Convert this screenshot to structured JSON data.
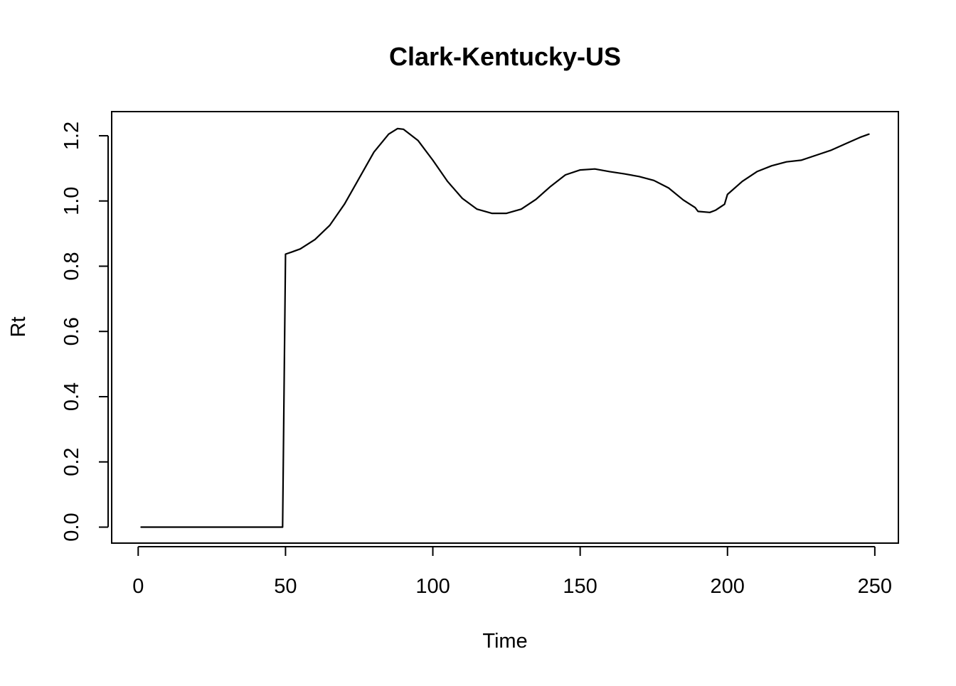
{
  "chart_data": {
    "type": "line",
    "title": "Clark-Kentucky-US",
    "xlabel": "Time",
    "ylabel": "Rt",
    "xlim": [
      -9,
      258
    ],
    "ylim": [
      -0.049,
      1.274
    ],
    "xticks": [
      0,
      50,
      100,
      150,
      200,
      250
    ],
    "yticks": [
      0.0,
      0.2,
      0.4,
      0.6,
      0.8,
      1.0,
      1.2
    ],
    "xtick_labels": [
      "0",
      "50",
      "100",
      "150",
      "200",
      "250"
    ],
    "ytick_labels": [
      "0.0",
      "0.2",
      "0.4",
      "0.6",
      "0.8",
      "1.0",
      "1.2"
    ],
    "grid": false,
    "legend": "none",
    "line_color": "#000000",
    "series": [
      {
        "x": [
          1,
          10,
          20,
          30,
          40,
          49,
          50,
          52,
          55,
          60,
          65,
          70,
          75,
          80,
          85,
          88,
          90,
          95,
          100,
          105,
          110,
          115,
          120,
          125,
          130,
          135,
          140,
          145,
          150,
          155,
          160,
          165,
          170,
          175,
          180,
          185,
          189,
          190,
          194,
          196,
          199,
          200,
          205,
          210,
          215,
          220,
          225,
          230,
          235,
          240,
          245,
          248
        ],
        "y": [
          0,
          0,
          0,
          0,
          0,
          0,
          0.837,
          0.843,
          0.853,
          0.882,
          0.925,
          0.99,
          1.07,
          1.15,
          1.205,
          1.222,
          1.22,
          1.185,
          1.125,
          1.06,
          1.008,
          0.975,
          0.962,
          0.962,
          0.975,
          1.005,
          1.045,
          1.08,
          1.095,
          1.098,
          1.09,
          1.083,
          1.075,
          1.063,
          1.04,
          1.003,
          0.98,
          0.968,
          0.965,
          0.972,
          0.99,
          1.02,
          1.06,
          1.09,
          1.108,
          1.12,
          1.125,
          1.14,
          1.155,
          1.175,
          1.195,
          1.205
        ]
      }
    ]
  }
}
